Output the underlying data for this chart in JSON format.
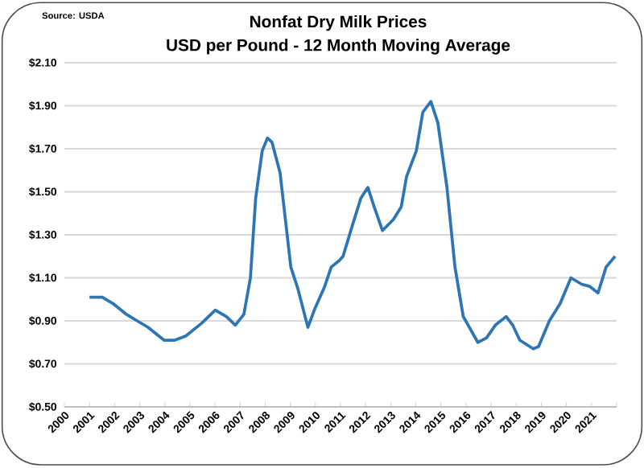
{
  "chart_data": {
    "type": "line",
    "title": "Nonfat Dry Milk Prices",
    "subtitle": "USD per Pound - 12 Month Moving Average",
    "annotations": [
      "Source: USDA"
    ],
    "series": [
      {
        "color": "#2e75b6",
        "x": [
          2001.0,
          2001.51,
          2001.94,
          2002.47,
          2002.9,
          2003.33,
          2003.97,
          2004.4,
          2004.84,
          2005.48,
          2006.01,
          2006.45,
          2006.81,
          2007.15,
          2007.41,
          2007.62,
          2007.88,
          2008.09,
          2008.27,
          2008.59,
          2009.02,
          2009.3,
          2009.7,
          2009.99,
          2010.37,
          2010.63,
          2010.95,
          2011.1,
          2011.49,
          2011.81,
          2012.09,
          2012.34,
          2012.67,
          2013.1,
          2013.42,
          2013.63,
          2014.02,
          2014.28,
          2014.6,
          2014.88,
          2015.24,
          2015.56,
          2015.89,
          2016.47,
          2016.81,
          2017.17,
          2017.6,
          2017.86,
          2018.14,
          2018.68,
          2018.89,
          2019.32,
          2019.75,
          2020.18,
          2020.61,
          2020.93,
          2021.26,
          2021.58,
          2021.94
        ],
        "values": [
          1.01,
          1.01,
          0.98,
          0.93,
          0.9,
          0.87,
          0.81,
          0.81,
          0.83,
          0.89,
          0.95,
          0.92,
          0.88,
          0.93,
          1.1,
          1.47,
          1.69,
          1.75,
          1.73,
          1.59,
          1.15,
          1.05,
          0.87,
          0.96,
          1.06,
          1.15,
          1.18,
          1.2,
          1.35,
          1.47,
          1.52,
          1.43,
          1.32,
          1.37,
          1.43,
          1.57,
          1.69,
          1.87,
          1.92,
          1.82,
          1.52,
          1.15,
          0.92,
          0.8,
          0.82,
          0.88,
          0.92,
          0.88,
          0.81,
          0.77,
          0.78,
          0.9,
          0.98,
          1.1,
          1.07,
          1.06,
          1.03,
          1.15,
          1.2
        ]
      }
    ],
    "xlim": [
      2000,
      2022
    ],
    "xticks": [
      2000,
      2001,
      2002,
      2003,
      2004,
      2005,
      2006,
      2007,
      2008,
      2009,
      2010,
      2011,
      2012,
      2013,
      2014,
      2015,
      2016,
      2017,
      2018,
      2019,
      2020,
      2021,
      {
        "value": 2022,
        "label": null
      }
    ],
    "ylim": [
      0.5,
      2.1
    ],
    "yticks": [
      {
        "value": 0.5,
        "label": "$0.50"
      },
      {
        "value": 0.7,
        "label": "$0.70"
      },
      {
        "value": 0.9,
        "label": "$0.90"
      },
      {
        "value": 1.1,
        "label": "$1.10"
      },
      {
        "value": 1.3,
        "label": "$1.30"
      },
      {
        "value": 1.5,
        "label": "$1.50"
      },
      {
        "value": 1.7,
        "label": "$1.70"
      },
      {
        "value": 1.9,
        "label": "$1.90"
      },
      {
        "value": 2.1,
        "label": "$2.10"
      }
    ],
    "grid": "y",
    "legend": false,
    "marker": "none",
    "line_style": "solid"
  }
}
